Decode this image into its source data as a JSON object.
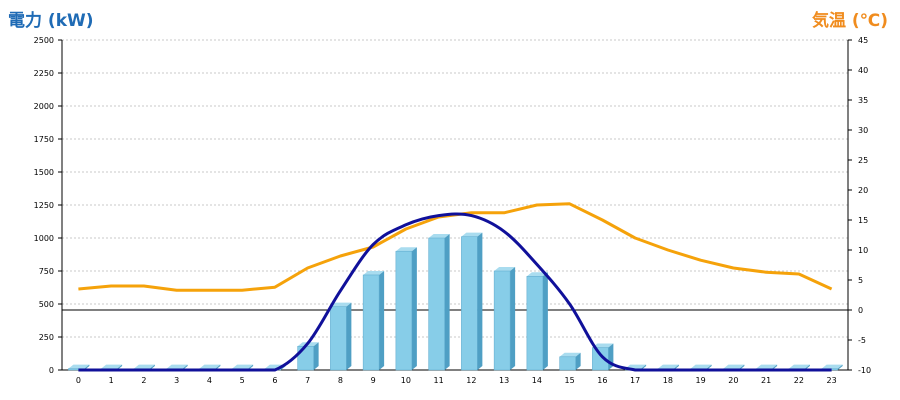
{
  "chart_data": {
    "type": "bar",
    "left_axis_title": "電力 (kW)",
    "right_axis_title": "気温 (℃)",
    "categories": [
      "0",
      "1",
      "2",
      "3",
      "4",
      "5",
      "6",
      "7",
      "8",
      "9",
      "10",
      "11",
      "12",
      "13",
      "14",
      "15",
      "16",
      "17",
      "18",
      "19",
      "20",
      "21",
      "22",
      "23"
    ],
    "ylim_left": [
      0,
      2500
    ],
    "left_ticks": [
      "0",
      "250",
      "500",
      "750",
      "1000",
      "1250",
      "1500",
      "1750",
      "2000",
      "2250",
      "2500"
    ],
    "ylim_right": [
      -10,
      45
    ],
    "right_ticks": [
      "-10",
      "-5",
      "0",
      "5",
      "10",
      "15",
      "20",
      "25",
      "30",
      "35",
      "40",
      "45"
    ],
    "grid": true,
    "reference_line_right": 0,
    "colors": {
      "bars": "#87cde8",
      "bar_side": "#4f9fc4",
      "temp_line": "#f5a20a",
      "power_line": "#10109a",
      "left_title": "#1f6bb5",
      "right_title": "#f08c1e"
    },
    "series": [
      {
        "kind": "bar",
        "axis": "left",
        "values": [
          10,
          10,
          10,
          10,
          10,
          10,
          10,
          180,
          480,
          720,
          900,
          1000,
          1010,
          750,
          710,
          100,
          170,
          10,
          10,
          10,
          10,
          10,
          10,
          10
        ]
      },
      {
        "kind": "line",
        "axis": "right",
        "values": [
          3.5,
          4,
          4,
          3.3,
          3.3,
          3.3,
          3.8,
          7,
          9,
          10.5,
          13.5,
          15.5,
          16.2,
          16.2,
          17.5,
          17.7,
          15,
          12,
          10,
          8.3,
          7,
          6.3,
          6,
          3.5
        ]
      },
      {
        "kind": "smooth-line",
        "axis": "left",
        "values": [
          0,
          0,
          0,
          0,
          0,
          0,
          0,
          200,
          600,
          950,
          1100,
          1170,
          1170,
          1050,
          800,
          500,
          100,
          0,
          0,
          0,
          0,
          0,
          0,
          0
        ]
      }
    ]
  }
}
